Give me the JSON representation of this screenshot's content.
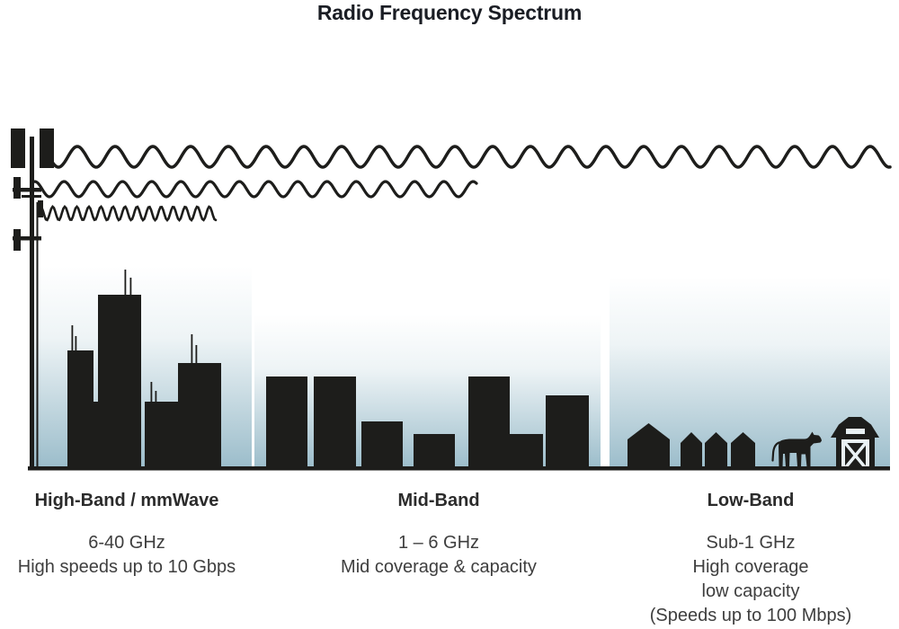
{
  "title": "Radio Frequency Spectrum",
  "bands": [
    {
      "name": "High-Band / mmWave",
      "freq": "6-40 GHz",
      "desc1": "High speeds up to 10 Gbps"
    },
    {
      "name": "Mid-Band",
      "freq": "1 – 6 GHz",
      "desc1": "Mid coverage & capacity"
    },
    {
      "name": "Low-Band",
      "freq": "Sub-1 GHz",
      "desc1": "High coverage",
      "desc2": "low capacity",
      "desc3": "(Speeds up to 100 Mbps)"
    }
  ],
  "illustration": {
    "transmitter": "cell-tower",
    "waves": [
      {
        "name": "high-band-wave",
        "wavelength": "short",
        "reach": "short"
      },
      {
        "name": "mid-band-wave",
        "wavelength": "medium",
        "reach": "medium"
      },
      {
        "name": "low-band-wave",
        "wavelength": "long",
        "reach": "full-width"
      }
    ],
    "scenes": [
      "dense-city-skyscrapers",
      "midrise-city-buildings",
      "rural-houses-cow-barn"
    ]
  },
  "colors": {
    "ink": "#1d1d1b",
    "sky_top": "#ffffff",
    "sky_bottom": "#9abcca",
    "title_text": "#1a1d24",
    "body_text": "#3e3e3e"
  }
}
